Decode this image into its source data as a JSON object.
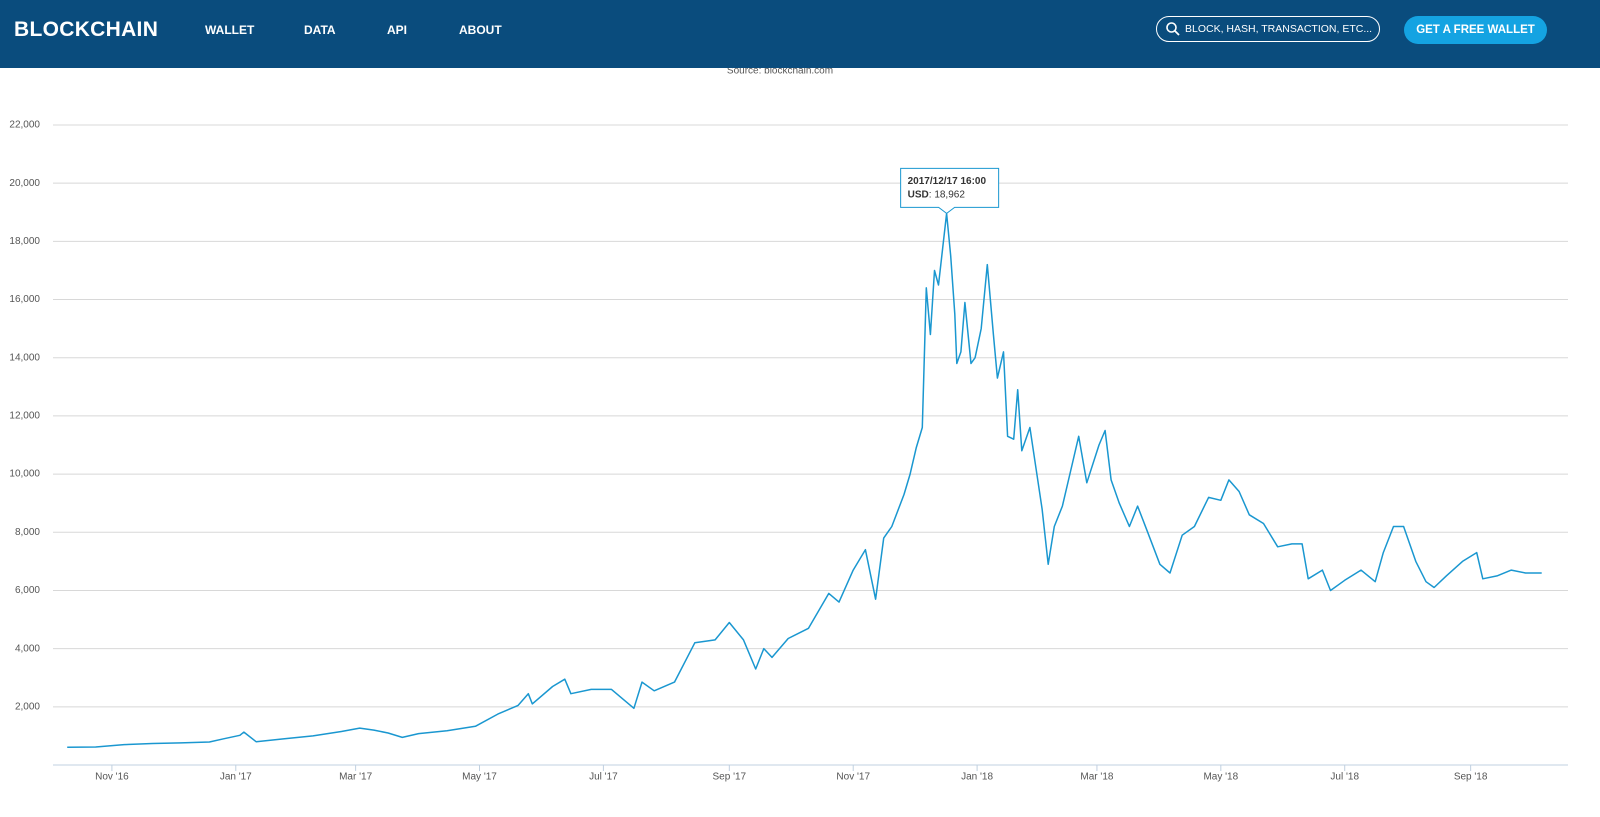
{
  "header": {
    "logo": "BLOCKCHAIN",
    "nav": [
      "WALLET",
      "DATA",
      "API",
      "ABOUT"
    ],
    "search_placeholder": "BLOCK, HASH, TRANSACTION, ETC...",
    "button": "GET A FREE WALLET"
  },
  "chart_data": {
    "type": "line",
    "source": "Source: blockchain.com",
    "color": "#1a97d0",
    "grid": true,
    "x": [
      "2016-10-10",
      "2016-10-24",
      "2016-11-07",
      "2016-11-21",
      "2016-12-05",
      "2016-12-19",
      "2016-12-26",
      "2017-01-03",
      "2017-01-05",
      "2017-01-11",
      "2017-01-25",
      "2017-02-08",
      "2017-02-22",
      "2017-03-03",
      "2017-03-10",
      "2017-03-17",
      "2017-03-24",
      "2017-04-01",
      "2017-04-15",
      "2017-04-29",
      "2017-05-10",
      "2017-05-20",
      "2017-05-25",
      "2017-05-27",
      "2017-06-06",
      "2017-06-12",
      "2017-06-15",
      "2017-06-25",
      "2017-07-05",
      "2017-07-16",
      "2017-07-20",
      "2017-07-26",
      "2017-08-05",
      "2017-08-15",
      "2017-08-25",
      "2017-09-01",
      "2017-09-08",
      "2017-09-14",
      "2017-09-18",
      "2017-09-22",
      "2017-09-30",
      "2017-10-10",
      "2017-10-20",
      "2017-10-25",
      "2017-11-01",
      "2017-11-07",
      "2017-11-12",
      "2017-11-16",
      "2017-11-20",
      "2017-11-26",
      "2017-11-29",
      "2017-12-02",
      "2017-12-05",
      "2017-12-07",
      "2017-12-09",
      "2017-12-11",
      "2017-12-13",
      "2017-12-17",
      "2017-12-19",
      "2017-12-21",
      "2017-12-22",
      "2017-12-24",
      "2017-12-26",
      "2017-12-29",
      "2017-12-31",
      "2018-01-03",
      "2018-01-06",
      "2018-01-09",
      "2018-01-11",
      "2018-01-14",
      "2018-01-16",
      "2018-01-19",
      "2018-01-21",
      "2018-01-23",
      "2018-01-27",
      "2018-01-30",
      "2018-02-02",
      "2018-02-05",
      "2018-02-08",
      "2018-02-12",
      "2018-02-17",
      "2018-02-20",
      "2018-02-24",
      "2018-03-02",
      "2018-03-05",
      "2018-03-08",
      "2018-03-12",
      "2018-03-17",
      "2018-03-21",
      "2018-03-26",
      "2018-04-01",
      "2018-04-06",
      "2018-04-12",
      "2018-04-18",
      "2018-04-25",
      "2018-05-01",
      "2018-05-05",
      "2018-05-10",
      "2018-05-15",
      "2018-05-22",
      "2018-05-29",
      "2018-06-05",
      "2018-06-10",
      "2018-06-13",
      "2018-06-20",
      "2018-06-24",
      "2018-07-01",
      "2018-07-09",
      "2018-07-16",
      "2018-07-20",
      "2018-07-25",
      "2018-07-30",
      "2018-08-05",
      "2018-08-10",
      "2018-08-14",
      "2018-08-20",
      "2018-08-28",
      "2018-09-04",
      "2018-09-07",
      "2018-09-14",
      "2018-09-21",
      "2018-09-28",
      "2018-10-06"
    ],
    "values": [
      610,
      620,
      700,
      740,
      760,
      790,
      900,
      1020,
      1130,
      800,
      900,
      1000,
      1150,
      1270,
      1200,
      1100,
      950,
      1080,
      1180,
      1330,
      1750,
      2050,
      2450,
      2100,
      2700,
      2950,
      2450,
      2600,
      2600,
      1950,
      2850,
      2550,
      2850,
      4200,
      4300,
      4900,
      4300,
      3300,
      4000,
      3700,
      4350,
      4700,
      5900,
      5600,
      6700,
      7400,
      5700,
      7800,
      8200,
      9300,
      10000,
      10900,
      11600,
      16400,
      14800,
      17000,
      16500,
      18962,
      17500,
      15500,
      13800,
      14200,
      15900,
      13800,
      14000,
      15000,
      17200,
      14800,
      13300,
      14200,
      11300,
      11200,
      12900,
      10800,
      11600,
      10200,
      8800,
      6900,
      8200,
      8900,
      10400,
      11300,
      9700,
      11000,
      11500,
      9800,
      9000,
      8200,
      8900,
      8000,
      6900,
      6600,
      7900,
      8200,
      9200,
      9100,
      9800,
      9400,
      8600,
      8300,
      7500,
      7600,
      7600,
      6400,
      6700,
      6000,
      6350,
      6700,
      6300,
      7300,
      8200,
      8200,
      7000,
      6300,
      6100,
      6500,
      7000,
      7300,
      6400,
      6500,
      6700,
      6600,
      6600
    ],
    "xlim": [
      "2016-10-03",
      "2018-10-15"
    ],
    "xticks": [
      {
        "value": "2016-11-01",
        "label": "Nov '16"
      },
      {
        "value": "2017-01-01",
        "label": "Jan '17"
      },
      {
        "value": "2017-03-01",
        "label": "Mar '17"
      },
      {
        "value": "2017-05-01",
        "label": "May '17"
      },
      {
        "value": "2017-07-01",
        "label": "Jul '17"
      },
      {
        "value": "2017-09-01",
        "label": "Sep '17"
      },
      {
        "value": "2017-11-01",
        "label": "Nov '17"
      },
      {
        "value": "2018-01-01",
        "label": "Jan '18"
      },
      {
        "value": "2018-03-01",
        "label": "Mar '18"
      },
      {
        "value": "2018-05-01",
        "label": "May '18"
      },
      {
        "value": "2018-07-01",
        "label": "Jul '18"
      },
      {
        "value": "2018-09-01",
        "label": "Sep '18"
      }
    ],
    "ylim": [
      0,
      22000
    ],
    "yticks": [
      {
        "value": 2000,
        "label": "2,000"
      },
      {
        "value": 4000,
        "label": "4,000"
      },
      {
        "value": 6000,
        "label": "6,000"
      },
      {
        "value": 8000,
        "label": "8,000"
      },
      {
        "value": 10000,
        "label": "10,000"
      },
      {
        "value": 12000,
        "label": "12,000"
      },
      {
        "value": 14000,
        "label": "14,000"
      },
      {
        "value": 16000,
        "label": "16,000"
      },
      {
        "value": 18000,
        "label": "18,000"
      },
      {
        "value": 20000,
        "label": "20,000"
      },
      {
        "value": 22000,
        "label": "22,000"
      }
    ],
    "tooltip": {
      "x": "2017-12-17",
      "title": "2017/12/17 16:00",
      "name": "USD",
      "value": 18962,
      "value_label": "18,962"
    }
  }
}
